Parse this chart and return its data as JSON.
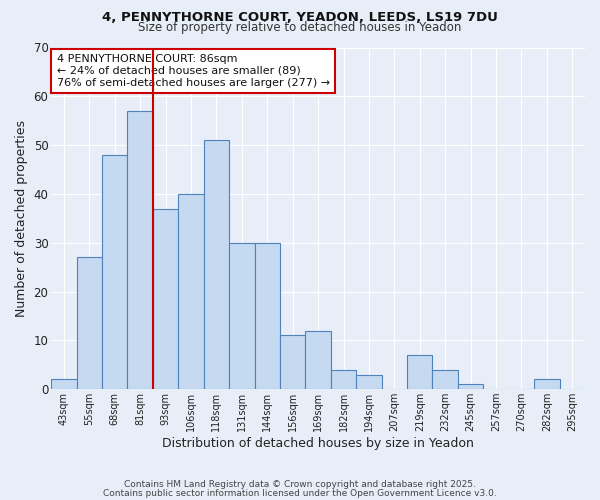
{
  "title1": "4, PENNYTHORNE COURT, YEADON, LEEDS, LS19 7DU",
  "title2": "Size of property relative to detached houses in Yeadon",
  "xlabel": "Distribution of detached houses by size in Yeadon",
  "ylabel": "Number of detached properties",
  "bar_labels": [
    "43sqm",
    "55sqm",
    "68sqm",
    "81sqm",
    "93sqm",
    "106sqm",
    "118sqm",
    "131sqm",
    "144sqm",
    "156sqm",
    "169sqm",
    "182sqm",
    "194sqm",
    "207sqm",
    "219sqm",
    "232sqm",
    "245sqm",
    "257sqm",
    "270sqm",
    "282sqm",
    "295sqm"
  ],
  "bar_values": [
    2,
    27,
    48,
    57,
    37,
    40,
    51,
    30,
    30,
    11,
    12,
    4,
    3,
    0,
    7,
    4,
    1,
    0,
    0,
    2,
    0
  ],
  "bar_color": "#c5d9f1",
  "bar_edge_color": "#4f81bd",
  "background_color": "#e8eef8",
  "grid_color": "#ffffff",
  "ylim": [
    0,
    70
  ],
  "yticks": [
    0,
    10,
    20,
    30,
    40,
    50,
    60,
    70
  ],
  "vline_color": "#cc0000",
  "annotation_title": "4 PENNYTHORNE COURT: 86sqm",
  "annotation_line2": "← 24% of detached houses are smaller (89)",
  "annotation_line3": "76% of semi-detached houses are larger (277) →",
  "annotation_box_color": "#ffffff",
  "annotation_box_edge": "#cc0000",
  "footer1": "Contains HM Land Registry data © Crown copyright and database right 2025.",
  "footer2": "Contains public sector information licensed under the Open Government Licence v3.0."
}
